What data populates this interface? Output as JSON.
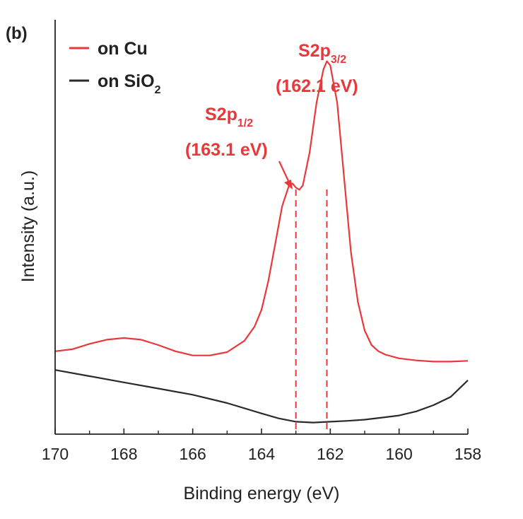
{
  "panel_label": "(b)",
  "colors": {
    "cu": "#e8383b",
    "sio2": "#2a2a2a",
    "axis": "#222222"
  },
  "chart_data": {
    "type": "line",
    "xlabel": "Binding energy (eV)",
    "ylabel": "Intensity (a.u.)",
    "xlim": [
      170,
      158
    ],
    "x_reversed": true,
    "ylim": [
      0,
      1
    ],
    "x_ticks": [
      "170",
      "168",
      "166",
      "164",
      "162",
      "160",
      "158"
    ],
    "x_tick_values": [
      170,
      168,
      166,
      164,
      162,
      160,
      158
    ],
    "y_ticks": [],
    "grid": false,
    "legend_position": "top-left",
    "series": [
      {
        "name": "on Cu",
        "color": "#e8383b",
        "x": [
          170,
          169.5,
          169,
          168.5,
          168,
          167.5,
          167,
          166.5,
          166,
          165.5,
          165,
          164.5,
          164.2,
          164,
          163.8,
          163.6,
          163.4,
          163.2,
          163.1,
          163.0,
          162.9,
          162.8,
          162.6,
          162.4,
          162.2,
          162.1,
          162.0,
          161.8,
          161.6,
          161.4,
          161.2,
          161.0,
          160.8,
          160.6,
          160.4,
          160.0,
          159.5,
          159.0,
          158.5,
          158.0
        ],
        "y": [
          0.2,
          0.205,
          0.218,
          0.228,
          0.232,
          0.228,
          0.215,
          0.2,
          0.19,
          0.19,
          0.198,
          0.225,
          0.26,
          0.3,
          0.37,
          0.46,
          0.55,
          0.6,
          0.605,
          0.595,
          0.59,
          0.6,
          0.68,
          0.8,
          0.88,
          0.9,
          0.89,
          0.8,
          0.62,
          0.44,
          0.32,
          0.25,
          0.215,
          0.2,
          0.192,
          0.183,
          0.178,
          0.175,
          0.175,
          0.177
        ]
      },
      {
        "name": "on SiO2",
        "color": "#2a2a2a",
        "x": [
          170,
          169,
          168,
          167,
          166,
          165,
          164,
          163.5,
          163,
          162.5,
          162,
          161.5,
          161,
          160.5,
          160,
          159.5,
          159,
          158.5,
          158
        ],
        "y": [
          0.155,
          0.14,
          0.125,
          0.11,
          0.095,
          0.075,
          0.05,
          0.038,
          0.03,
          0.028,
          0.03,
          0.032,
          0.035,
          0.04,
          0.045,
          0.055,
          0.07,
          0.09,
          0.13
        ]
      }
    ],
    "reference_lines": [
      {
        "x": 163.0,
        "color": "#e8383b",
        "style": "dashed"
      },
      {
        "x": 162.1,
        "color": "#e8383b",
        "style": "dashed"
      }
    ],
    "annotations": [
      {
        "label": "S2p",
        "subscript": "1/2",
        "energy": "(163.1 eV)"
      },
      {
        "label": "S2p",
        "subscript": "3/2",
        "energy": "(162.1 eV)"
      }
    ]
  }
}
